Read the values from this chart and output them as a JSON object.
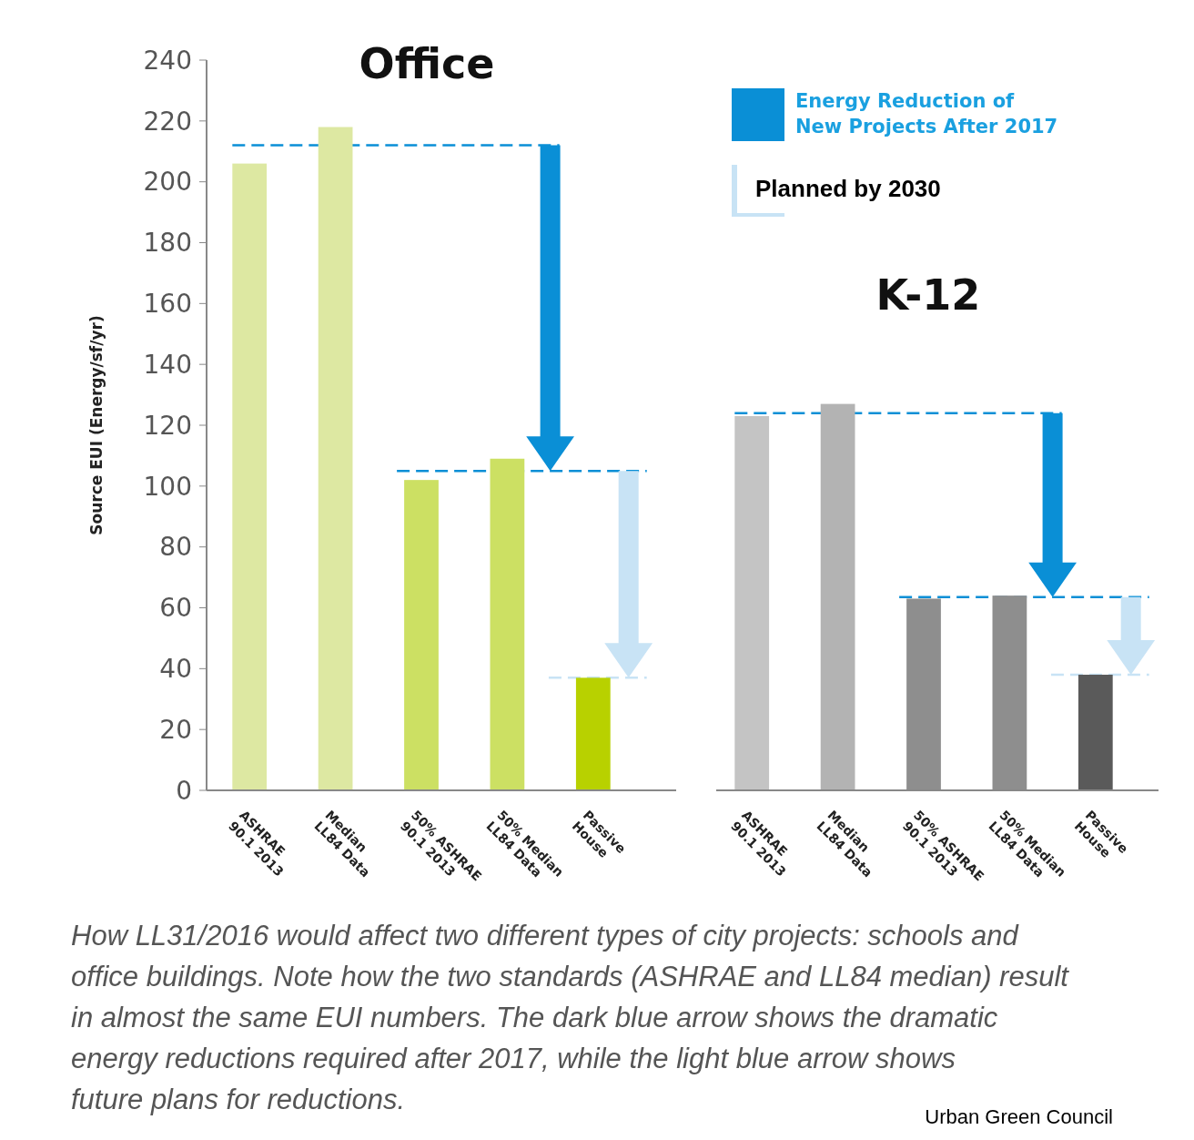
{
  "chart_data": [
    {
      "type": "bar",
      "title": "Office",
      "ylabel": "Source EUI (Energy/sf/yr)",
      "categories": [
        "ASHRAE\n90.1 2013",
        "Median\nLL84 Data",
        "50% ASHRAE\n90.1 2013",
        "50% Median\nLL84 Data",
        "Passive\nHouse"
      ],
      "values": [
        206,
        218,
        102,
        109,
        37
      ],
      "colors": [
        "#dde8a2",
        "#dde8a2",
        "#cce063",
        "#cce063",
        "#b8d100"
      ],
      "ylim": [
        0,
        240
      ],
      "yticks": [
        0,
        20,
        40,
        60,
        80,
        100,
        120,
        140,
        160,
        180,
        200,
        220,
        240
      ],
      "ref_lines": [
        {
          "axis": "y",
          "value": 212,
          "color": "#0a8fd6",
          "line_style": "dashed"
        },
        {
          "axis": "y",
          "value": 105,
          "color": "#0a8fd6",
          "line_style": "dashed"
        },
        {
          "axis": "y",
          "value": 37,
          "color": "#c8e3f5",
          "line_style": "dashed"
        }
      ]
    },
    {
      "type": "bar",
      "title": "K-12",
      "categories": [
        "ASHRAE\n90.1 2013",
        "Median\nLL84 Data",
        "50% ASHRAE\n90.1 2013",
        "50% Median\nLL84 Data",
        "Passive\nHouse"
      ],
      "values": [
        123,
        127,
        63,
        64,
        38
      ],
      "colors": [
        "#c4c4c4",
        "#b3b3b3",
        "#8e8e8e",
        "#8e8e8e",
        "#5a5a5a"
      ],
      "ylim": [
        0,
        240
      ],
      "tick_labels": "x",
      "ref_lines": [
        {
          "axis": "y",
          "value": 124,
          "color": "#0a8fd6",
          "line_style": "dashed"
        },
        {
          "axis": "y",
          "value": 63.5,
          "color": "#0a8fd6",
          "line_style": "dashed"
        },
        {
          "axis": "y",
          "value": 38,
          "color": "#c8e3f5",
          "line_style": "dashed"
        }
      ],
      "annotations": [
        "Energy Reduction of\nNew Projects After 2017",
        "Planned by 2030",
        "How LL31/2016 would affect two different types of city projects: schools and office buildings. Note how the two standards (ASHRAE and LL84 median) result in almost the same EUI numbers. The dark blue arrow shows the dramatic energy reductions required after 2017, while the light blue arrow shows future plans for reductions.",
        "Urban Green Council"
      ]
    }
  ]
}
